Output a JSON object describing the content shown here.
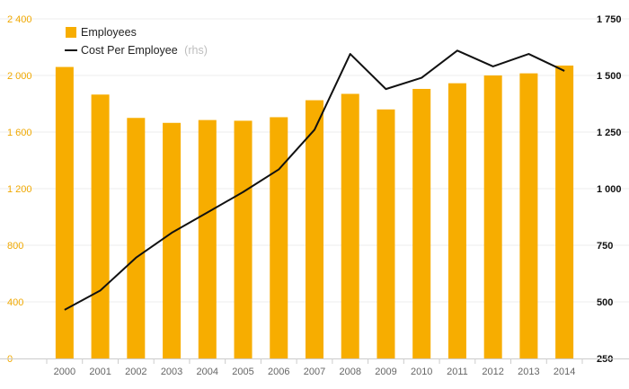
{
  "chart_data": {
    "type": "bar",
    "categories": [
      "2000",
      "2001",
      "2002",
      "2003",
      "2004",
      "2005",
      "2006",
      "2007",
      "2008",
      "2009",
      "2010",
      "2011",
      "2012",
      "2013",
      "2014"
    ],
    "series": [
      {
        "name": "Employees",
        "type": "bar",
        "axis": "left",
        "color": "#f7ad00",
        "values": [
          2060,
          1865,
          1700,
          1665,
          1685,
          1680,
          1705,
          1825,
          1870,
          1760,
          1905,
          1945,
          2000,
          2015,
          2070
        ]
      },
      {
        "name": "Cost Per Employee",
        "name_note": "(rhs)",
        "type": "line",
        "axis": "right",
        "color": "#111111",
        "values": [
          465,
          550,
          695,
          805,
          895,
          985,
          1085,
          1260,
          1595,
          1440,
          1490,
          1610,
          1540,
          1595,
          1520
        ]
      }
    ],
    "y_left": {
      "min": 0,
      "max": 2400,
      "ticks": [
        "0",
        "400",
        "800",
        "1 200",
        "1 600",
        "2 000",
        "2 400"
      ],
      "color": "#f0a800"
    },
    "y_right": {
      "min": 250,
      "max": 1750,
      "ticks": [
        "250",
        "500",
        "750",
        "1 000",
        "1 250",
        "1 500",
        "1 750"
      ],
      "color": "#111111"
    },
    "grid": true,
    "legend_position": "top-left",
    "title": "",
    "xlabel": "",
    "ylabel": ""
  }
}
